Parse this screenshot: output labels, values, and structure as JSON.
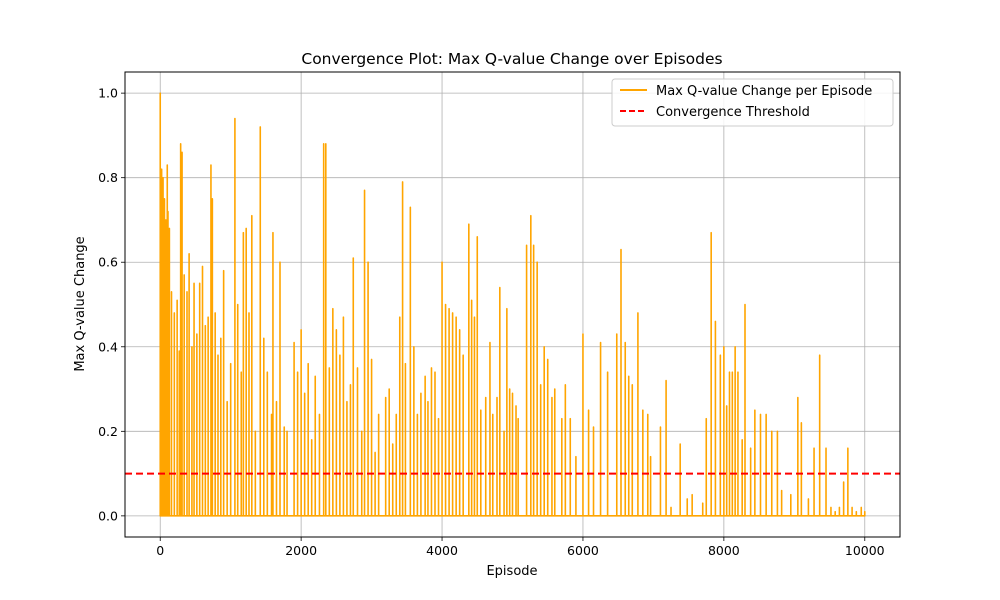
{
  "chart_data": {
    "type": "line",
    "title": "Convergence Plot: Max Q-value Change over Episodes",
    "xlabel": "Episode",
    "ylabel": "Max Q-value Change",
    "xlim": [
      -500,
      10500
    ],
    "ylim": [
      -0.05,
      1.05
    ],
    "xticks": [
      0,
      2000,
      4000,
      6000,
      8000,
      10000
    ],
    "yticks": [
      0.0,
      0.2,
      0.4,
      0.6,
      0.8,
      1.0
    ],
    "grid": true,
    "legend_position": "top-right",
    "series": [
      {
        "name": "Max Q-value Change per Episode",
        "color": "#FFA500",
        "style": "solid",
        "spikes": [
          [
            0,
            1.0
          ],
          [
            20,
            0.82
          ],
          [
            40,
            0.8
          ],
          [
            60,
            0.75
          ],
          [
            80,
            0.7
          ],
          [
            100,
            0.83
          ],
          [
            110,
            0.72
          ],
          [
            130,
            0.68
          ],
          [
            160,
            0.53
          ],
          [
            200,
            0.48
          ],
          [
            240,
            0.51
          ],
          [
            270,
            0.39
          ],
          [
            290,
            0.88
          ],
          [
            310,
            0.86
          ],
          [
            340,
            0.57
          ],
          [
            380,
            0.53
          ],
          [
            410,
            0.62
          ],
          [
            450,
            0.4
          ],
          [
            480,
            0.55
          ],
          [
            520,
            0.43
          ],
          [
            560,
            0.55
          ],
          [
            600,
            0.59
          ],
          [
            640,
            0.45
          ],
          [
            680,
            0.47
          ],
          [
            720,
            0.83
          ],
          [
            740,
            0.75
          ],
          [
            780,
            0.48
          ],
          [
            820,
            0.38
          ],
          [
            860,
            0.42
          ],
          [
            900,
            0.58
          ],
          [
            950,
            0.27
          ],
          [
            1000,
            0.36
          ],
          [
            1060,
            0.94
          ],
          [
            1100,
            0.5
          ],
          [
            1150,
            0.34
          ],
          [
            1180,
            0.67
          ],
          [
            1220,
            0.68
          ],
          [
            1260,
            0.48
          ],
          [
            1300,
            0.71
          ],
          [
            1350,
            0.2
          ],
          [
            1420,
            0.92
          ],
          [
            1470,
            0.42
          ],
          [
            1520,
            0.34
          ],
          [
            1580,
            0.24
          ],
          [
            1600,
            0.67
          ],
          [
            1650,
            0.27
          ],
          [
            1700,
            0.6
          ],
          [
            1760,
            0.21
          ],
          [
            1800,
            0.2
          ],
          [
            1900,
            0.41
          ],
          [
            1950,
            0.34
          ],
          [
            2000,
            0.44
          ],
          [
            2050,
            0.29
          ],
          [
            2100,
            0.36
          ],
          [
            2150,
            0.18
          ],
          [
            2200,
            0.33
          ],
          [
            2260,
            0.24
          ],
          [
            2320,
            0.88
          ],
          [
            2350,
            0.88
          ],
          [
            2400,
            0.35
          ],
          [
            2450,
            0.49
          ],
          [
            2500,
            0.44
          ],
          [
            2550,
            0.38
          ],
          [
            2600,
            0.47
          ],
          [
            2650,
            0.27
          ],
          [
            2700,
            0.31
          ],
          [
            2740,
            0.61
          ],
          [
            2800,
            0.35
          ],
          [
            2860,
            0.2
          ],
          [
            2900,
            0.77
          ],
          [
            2950,
            0.6
          ],
          [
            3000,
            0.37
          ],
          [
            3050,
            0.15
          ],
          [
            3100,
            0.24
          ],
          [
            3200,
            0.28
          ],
          [
            3250,
            0.3
          ],
          [
            3300,
            0.17
          ],
          [
            3350,
            0.24
          ],
          [
            3400,
            0.47
          ],
          [
            3440,
            0.79
          ],
          [
            3480,
            0.36
          ],
          [
            3550,
            0.73
          ],
          [
            3600,
            0.4
          ],
          [
            3650,
            0.24
          ],
          [
            3700,
            0.29
          ],
          [
            3760,
            0.33
          ],
          [
            3800,
            0.27
          ],
          [
            3850,
            0.35
          ],
          [
            3900,
            0.34
          ],
          [
            3950,
            0.23
          ],
          [
            4000,
            0.6
          ],
          [
            4050,
            0.5
          ],
          [
            4100,
            0.49
          ],
          [
            4150,
            0.48
          ],
          [
            4200,
            0.47
          ],
          [
            4250,
            0.44
          ],
          [
            4300,
            0.38
          ],
          [
            4380,
            0.69
          ],
          [
            4420,
            0.51
          ],
          [
            4460,
            0.47
          ],
          [
            4500,
            0.66
          ],
          [
            4550,
            0.25
          ],
          [
            4620,
            0.28
          ],
          [
            4680,
            0.41
          ],
          [
            4720,
            0.24
          ],
          [
            4780,
            0.28
          ],
          [
            4820,
            0.54
          ],
          [
            4880,
            0.2
          ],
          [
            4920,
            0.49
          ],
          [
            4960,
            0.3
          ],
          [
            5000,
            0.29
          ],
          [
            5050,
            0.26
          ],
          [
            5080,
            0.23
          ],
          [
            5200,
            0.64
          ],
          [
            5260,
            0.71
          ],
          [
            5300,
            0.64
          ],
          [
            5350,
            0.6
          ],
          [
            5400,
            0.31
          ],
          [
            5450,
            0.4
          ],
          [
            5500,
            0.37
          ],
          [
            5560,
            0.28
          ],
          [
            5600,
            0.3
          ],
          [
            5700,
            0.23
          ],
          [
            5750,
            0.31
          ],
          [
            5820,
            0.23
          ],
          [
            5900,
            0.14
          ],
          [
            6000,
            0.43
          ],
          [
            6080,
            0.25
          ],
          [
            6150,
            0.21
          ],
          [
            6250,
            0.41
          ],
          [
            6350,
            0.34
          ],
          [
            6480,
            0.43
          ],
          [
            6540,
            0.63
          ],
          [
            6600,
            0.41
          ],
          [
            6650,
            0.33
          ],
          [
            6700,
            0.31
          ],
          [
            6780,
            0.48
          ],
          [
            6850,
            0.25
          ],
          [
            6920,
            0.24
          ],
          [
            6960,
            0.14
          ],
          [
            7100,
            0.21
          ],
          [
            7180,
            0.32
          ],
          [
            7250,
            0.02
          ],
          [
            7380,
            0.17
          ],
          [
            7480,
            0.04
          ],
          [
            7550,
            0.05
          ],
          [
            7700,
            0.03
          ],
          [
            7750,
            0.23
          ],
          [
            7820,
            0.67
          ],
          [
            7880,
            0.46
          ],
          [
            7950,
            0.38
          ],
          [
            8000,
            0.4
          ],
          [
            8040,
            0.26
          ],
          [
            8080,
            0.34
          ],
          [
            8120,
            0.34
          ],
          [
            8160,
            0.4
          ],
          [
            8200,
            0.34
          ],
          [
            8260,
            0.18
          ],
          [
            8300,
            0.5
          ],
          [
            8380,
            0.16
          ],
          [
            8440,
            0.25
          ],
          [
            8520,
            0.24
          ],
          [
            8600,
            0.24
          ],
          [
            8680,
            0.2
          ],
          [
            8760,
            0.2
          ],
          [
            8820,
            0.06
          ],
          [
            8950,
            0.05
          ],
          [
            9050,
            0.28
          ],
          [
            9100,
            0.22
          ],
          [
            9200,
            0.04
          ],
          [
            9280,
            0.16
          ],
          [
            9360,
            0.38
          ],
          [
            9450,
            0.16
          ],
          [
            9520,
            0.02
          ],
          [
            9580,
            0.01
          ],
          [
            9640,
            0.02
          ],
          [
            9700,
            0.08
          ],
          [
            9760,
            0.16
          ],
          [
            9820,
            0.02
          ],
          [
            9880,
            0.01
          ],
          [
            9950,
            0.02
          ],
          [
            10000,
            0.01
          ]
        ]
      },
      {
        "name": "Convergence Threshold",
        "color": "#FF0000",
        "style": "dashed",
        "y": 0.1
      }
    ]
  }
}
